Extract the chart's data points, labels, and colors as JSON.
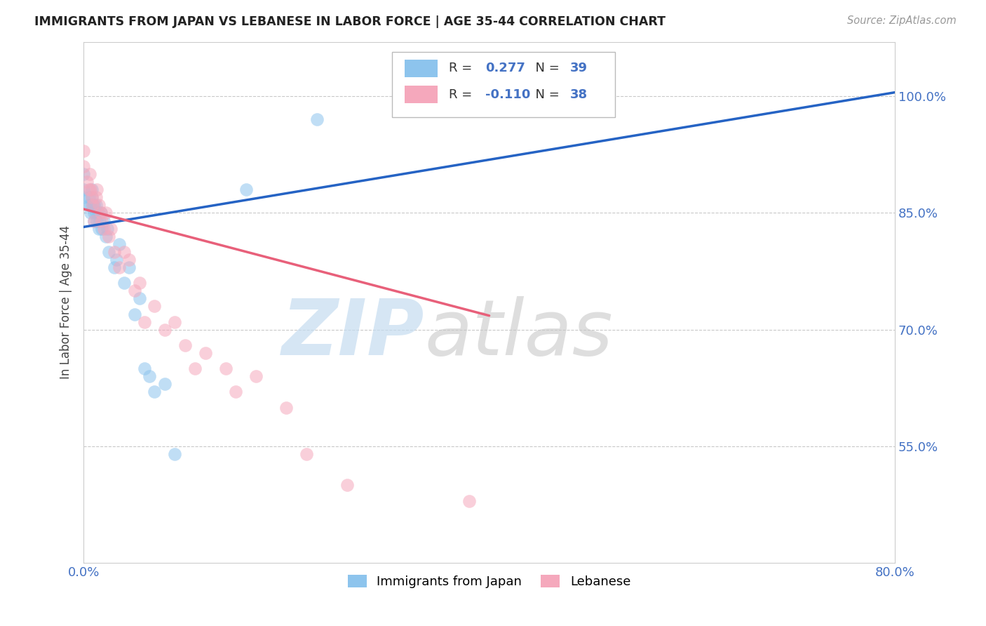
{
  "title": "IMMIGRANTS FROM JAPAN VS LEBANESE IN LABOR FORCE | AGE 35-44 CORRELATION CHART",
  "source_text": "Source: ZipAtlas.com",
  "ylabel": "In Labor Force | Age 35-44",
  "xlim": [
    0.0,
    0.8
  ],
  "ylim": [
    0.4,
    1.07
  ],
  "yticks": [
    0.55,
    0.7,
    0.85,
    1.0
  ],
  "ytick_labels": [
    "55.0%",
    "70.0%",
    "85.0%",
    "100.0%"
  ],
  "xticks": [
    0.0,
    0.8
  ],
  "xtick_labels": [
    "0.0%",
    "80.0%"
  ],
  "r_japan": 0.277,
  "n_japan": 39,
  "r_lebanese": -0.11,
  "n_lebanese": 38,
  "color_japan": "#8DC4ED",
  "color_lebanese": "#F5A8BC",
  "trendline_japan_color": "#2563C4",
  "trendline_lebanese_color": "#E8607A",
  "japan_trendline_x": [
    0.0,
    0.8
  ],
  "japan_trendline_y": [
    0.832,
    1.005
  ],
  "lebanese_trendline_x": [
    0.0,
    0.4
  ],
  "lebanese_trendline_y": [
    0.855,
    0.718
  ],
  "japan_x": [
    0.0,
    0.0,
    0.0,
    0.005,
    0.005,
    0.007,
    0.007,
    0.008,
    0.008,
    0.009,
    0.01,
    0.01,
    0.01,
    0.012,
    0.012,
    0.013,
    0.014,
    0.015,
    0.016,
    0.017,
    0.018,
    0.02,
    0.022,
    0.023,
    0.025,
    0.03,
    0.032,
    0.035,
    0.04,
    0.045,
    0.05,
    0.055,
    0.06,
    0.065,
    0.07,
    0.08,
    0.09,
    0.16,
    0.23
  ],
  "japan_y": [
    0.87,
    0.88,
    0.9,
    0.86,
    0.87,
    0.85,
    0.86,
    0.87,
    0.88,
    0.86,
    0.84,
    0.85,
    0.86,
    0.85,
    0.86,
    0.84,
    0.85,
    0.83,
    0.84,
    0.85,
    0.83,
    0.84,
    0.82,
    0.83,
    0.8,
    0.78,
    0.79,
    0.81,
    0.76,
    0.78,
    0.72,
    0.74,
    0.65,
    0.64,
    0.62,
    0.63,
    0.54,
    0.88,
    0.97
  ],
  "lebanese_x": [
    0.0,
    0.0,
    0.003,
    0.005,
    0.006,
    0.007,
    0.008,
    0.009,
    0.01,
    0.012,
    0.013,
    0.015,
    0.017,
    0.018,
    0.02,
    0.022,
    0.025,
    0.027,
    0.03,
    0.035,
    0.04,
    0.045,
    0.05,
    0.055,
    0.06,
    0.07,
    0.08,
    0.09,
    0.1,
    0.11,
    0.12,
    0.14,
    0.15,
    0.17,
    0.2,
    0.22,
    0.26,
    0.38
  ],
  "lebanese_y": [
    0.91,
    0.93,
    0.89,
    0.88,
    0.9,
    0.88,
    0.87,
    0.86,
    0.84,
    0.87,
    0.88,
    0.86,
    0.85,
    0.84,
    0.83,
    0.85,
    0.82,
    0.83,
    0.8,
    0.78,
    0.8,
    0.79,
    0.75,
    0.76,
    0.71,
    0.73,
    0.7,
    0.71,
    0.68,
    0.65,
    0.67,
    0.65,
    0.62,
    0.64,
    0.6,
    0.54,
    0.5,
    0.48
  ]
}
